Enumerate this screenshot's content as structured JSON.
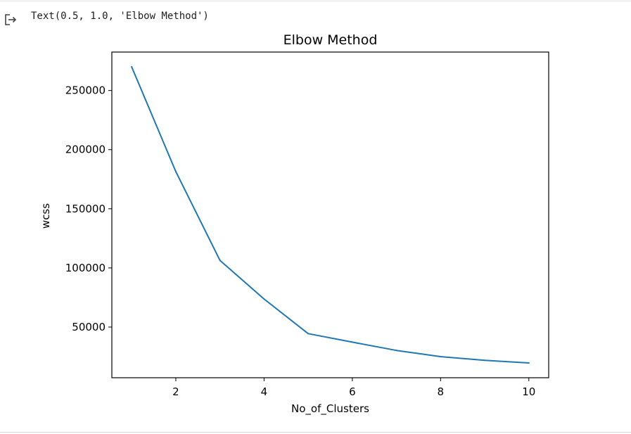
{
  "output": {
    "text": "Text(0.5, 1.0, 'Elbow Method')",
    "icon": "output-redirect-icon"
  },
  "chart_data": {
    "type": "line",
    "title": "Elbow Method",
    "xlabel": "No_of_Clusters",
    "ylabel": "wcss",
    "x": [
      1,
      2,
      3,
      4,
      5,
      6,
      7,
      8,
      9,
      10
    ],
    "series": [
      {
        "name": "wcss",
        "color": "#1f77b4",
        "values": [
          269981,
          181363,
          106348,
          73679,
          44448,
          37233,
          30259,
          25011,
          21851,
          19673
        ]
      }
    ],
    "xlim": [
      0.55,
      10.45
    ],
    "ylim": [
      7160,
      282501
    ],
    "xticks": [
      2,
      4,
      6,
      8,
      10
    ],
    "yticks": [
      50000,
      100000,
      150000,
      200000,
      250000
    ],
    "grid": false,
    "legend": false
  }
}
